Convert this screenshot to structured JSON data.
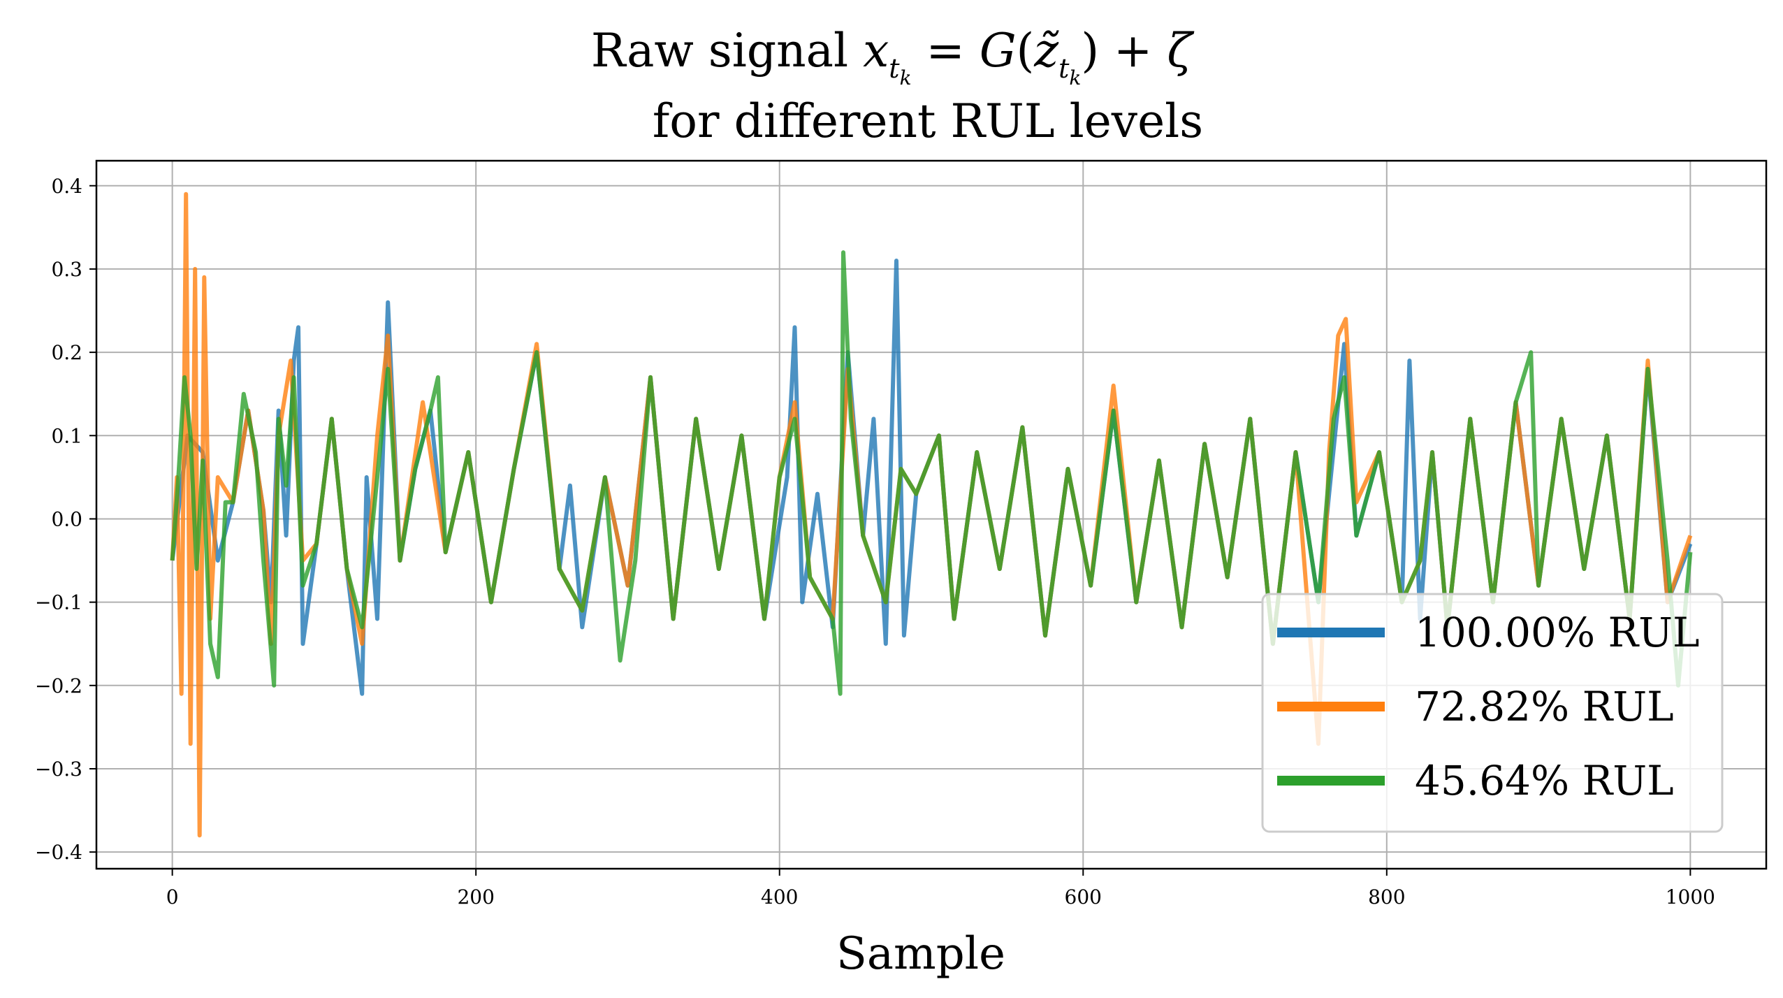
{
  "title_prefix": "Raw signal ",
  "title_line2": "for different RUL levels",
  "chart_data": {
    "type": "line",
    "title": "Raw signal x_{t_k} = G(z̃_{t_k}) + ζ for different RUL levels",
    "xlabel": "Sample",
    "ylabel": "",
    "xlim": [
      -50,
      1050
    ],
    "ylim": [
      -0.42,
      0.43
    ],
    "xticks": [
      0,
      200,
      400,
      600,
      800,
      1000
    ],
    "xtick_labels": [
      "0",
      "200",
      "400",
      "600",
      "800",
      "1000"
    ],
    "yticks": [
      -0.4,
      -0.3,
      -0.2,
      -0.1,
      0.0,
      0.1,
      0.2,
      0.3,
      0.4
    ],
    "ytick_labels": [
      "−0.4",
      "−0.3",
      "−0.2",
      "−0.1",
      "0.0",
      "0.1",
      "0.2",
      "0.3",
      "0.4"
    ],
    "grid": true,
    "legend_position": "lower-right",
    "series": [
      {
        "name": "100.00% RUL",
        "color": "#1f77b4",
        "points": [
          [
            0,
            -0.05
          ],
          [
            10,
            0.1
          ],
          [
            20,
            0.08
          ],
          [
            30,
            -0.05
          ],
          [
            40,
            0.02
          ],
          [
            50,
            0.13
          ],
          [
            60,
            0.01
          ],
          [
            65,
            -0.1
          ],
          [
            70,
            0.13
          ],
          [
            75,
            -0.02
          ],
          [
            80,
            0.19
          ],
          [
            83,
            0.23
          ],
          [
            86,
            -0.15
          ],
          [
            95,
            -0.03
          ],
          [
            105,
            0.12
          ],
          [
            115,
            -0.06
          ],
          [
            125,
            -0.21
          ],
          [
            128,
            0.05
          ],
          [
            135,
            -0.12
          ],
          [
            142,
            0.26
          ],
          [
            150,
            -0.05
          ],
          [
            160,
            0.06
          ],
          [
            170,
            0.13
          ],
          [
            180,
            -0.04
          ],
          [
            195,
            0.08
          ],
          [
            210,
            -0.1
          ],
          [
            225,
            0.06
          ],
          [
            240,
            0.2
          ],
          [
            255,
            -0.06
          ],
          [
            262,
            0.04
          ],
          [
            270,
            -0.13
          ],
          [
            285,
            0.05
          ],
          [
            300,
            -0.08
          ],
          [
            315,
            0.17
          ],
          [
            330,
            -0.12
          ],
          [
            345,
            0.12
          ],
          [
            360,
            -0.06
          ],
          [
            375,
            0.1
          ],
          [
            390,
            -0.12
          ],
          [
            405,
            0.05
          ],
          [
            410,
            0.23
          ],
          [
            415,
            -0.1
          ],
          [
            425,
            0.03
          ],
          [
            435,
            -0.13
          ],
          [
            445,
            0.2
          ],
          [
            455,
            -0.02
          ],
          [
            462,
            0.12
          ],
          [
            470,
            -0.15
          ],
          [
            477,
            0.31
          ],
          [
            482,
            -0.14
          ],
          [
            490,
            0.03
          ],
          [
            505,
            0.1
          ],
          [
            515,
            -0.12
          ],
          [
            530,
            0.08
          ],
          [
            545,
            -0.06
          ],
          [
            560,
            0.11
          ],
          [
            575,
            -0.14
          ],
          [
            590,
            0.06
          ],
          [
            605,
            -0.08
          ],
          [
            620,
            0.13
          ],
          [
            635,
            -0.1
          ],
          [
            650,
            0.07
          ],
          [
            665,
            -0.13
          ],
          [
            680,
            0.09
          ],
          [
            695,
            -0.07
          ],
          [
            710,
            0.12
          ],
          [
            725,
            -0.15
          ],
          [
            740,
            0.08
          ],
          [
            755,
            -0.1
          ],
          [
            762,
            0.03
          ],
          [
            772,
            0.21
          ],
          [
            780,
            -0.02
          ],
          [
            795,
            0.08
          ],
          [
            810,
            -0.1
          ],
          [
            815,
            0.19
          ],
          [
            822,
            -0.12
          ],
          [
            830,
            0.08
          ],
          [
            840,
            -0.13
          ],
          [
            855,
            0.12
          ],
          [
            870,
            -0.1
          ],
          [
            885,
            0.14
          ],
          [
            900,
            -0.08
          ],
          [
            915,
            0.12
          ],
          [
            930,
            -0.06
          ],
          [
            945,
            0.1
          ],
          [
            960,
            -0.12
          ],
          [
            972,
            0.18
          ],
          [
            985,
            -0.1
          ],
          [
            1000,
            -0.03
          ]
        ]
      },
      {
        "name": "72.82% RUL",
        "color": "#ff7f0e",
        "points": [
          [
            0,
            -0.05
          ],
          [
            3,
            0.05
          ],
          [
            6,
            -0.21
          ],
          [
            9,
            0.39
          ],
          [
            12,
            -0.27
          ],
          [
            15,
            0.3
          ],
          [
            18,
            -0.38
          ],
          [
            21,
            0.29
          ],
          [
            25,
            -0.12
          ],
          [
            30,
            0.05
          ],
          [
            40,
            0.02
          ],
          [
            50,
            0.13
          ],
          [
            60,
            0.01
          ],
          [
            65,
            -0.15
          ],
          [
            70,
            0.1
          ],
          [
            78,
            0.19
          ],
          [
            86,
            -0.05
          ],
          [
            95,
            -0.03
          ],
          [
            105,
            0.12
          ],
          [
            115,
            -0.06
          ],
          [
            125,
            -0.15
          ],
          [
            135,
            0.1
          ],
          [
            142,
            0.22
          ],
          [
            150,
            -0.05
          ],
          [
            165,
            0.14
          ],
          [
            180,
            -0.04
          ],
          [
            195,
            0.08
          ],
          [
            210,
            -0.1
          ],
          [
            225,
            0.06
          ],
          [
            240,
            0.21
          ],
          [
            255,
            -0.06
          ],
          [
            270,
            -0.11
          ],
          [
            285,
            0.05
          ],
          [
            300,
            -0.08
          ],
          [
            315,
            0.17
          ],
          [
            330,
            -0.12
          ],
          [
            345,
            0.12
          ],
          [
            360,
            -0.06
          ],
          [
            375,
            0.1
          ],
          [
            390,
            -0.12
          ],
          [
            400,
            0.05
          ],
          [
            410,
            0.14
          ],
          [
            420,
            -0.07
          ],
          [
            435,
            -0.12
          ],
          [
            445,
            0.18
          ],
          [
            455,
            -0.02
          ],
          [
            470,
            -0.1
          ],
          [
            480,
            0.06
          ],
          [
            490,
            0.03
          ],
          [
            505,
            0.1
          ],
          [
            515,
            -0.12
          ],
          [
            530,
            0.08
          ],
          [
            545,
            -0.06
          ],
          [
            560,
            0.11
          ],
          [
            575,
            -0.14
          ],
          [
            590,
            0.06
          ],
          [
            605,
            -0.08
          ],
          [
            620,
            0.16
          ],
          [
            635,
            -0.1
          ],
          [
            650,
            0.07
          ],
          [
            665,
            -0.13
          ],
          [
            680,
            0.09
          ],
          [
            695,
            -0.07
          ],
          [
            710,
            0.12
          ],
          [
            725,
            -0.15
          ],
          [
            740,
            0.08
          ],
          [
            755,
            -0.27
          ],
          [
            762,
            0.08
          ],
          [
            768,
            0.22
          ],
          [
            773,
            0.24
          ],
          [
            780,
            0.02
          ],
          [
            795,
            0.08
          ],
          [
            810,
            -0.1
          ],
          [
            822,
            -0.05
          ],
          [
            830,
            0.08
          ],
          [
            840,
            -0.13
          ],
          [
            855,
            0.12
          ],
          [
            870,
            -0.1
          ],
          [
            885,
            0.14
          ],
          [
            900,
            -0.08
          ],
          [
            915,
            0.12
          ],
          [
            930,
            -0.06
          ],
          [
            945,
            0.1
          ],
          [
            960,
            -0.12
          ],
          [
            972,
            0.19
          ],
          [
            985,
            -0.1
          ],
          [
            1000,
            -0.02
          ]
        ]
      },
      {
        "name": "45.64% RUL",
        "color": "#2ca02c",
        "points": [
          [
            0,
            -0.05
          ],
          [
            4,
            0.05
          ],
          [
            8,
            0.17
          ],
          [
            12,
            0.1
          ],
          [
            16,
            -0.06
          ],
          [
            20,
            0.07
          ],
          [
            25,
            -0.15
          ],
          [
            30,
            -0.19
          ],
          [
            35,
            0.02
          ],
          [
            40,
            0.02
          ],
          [
            47,
            0.15
          ],
          [
            55,
            0.08
          ],
          [
            60,
            -0.05
          ],
          [
            67,
            -0.2
          ],
          [
            70,
            0.12
          ],
          [
            75,
            0.04
          ],
          [
            80,
            0.17
          ],
          [
            86,
            -0.08
          ],
          [
            95,
            -0.03
          ],
          [
            105,
            0.12
          ],
          [
            115,
            -0.06
          ],
          [
            125,
            -0.13
          ],
          [
            135,
            0.05
          ],
          [
            142,
            0.18
          ],
          [
            150,
            -0.05
          ],
          [
            160,
            0.06
          ],
          [
            170,
            0.13
          ],
          [
            175,
            0.17
          ],
          [
            180,
            -0.04
          ],
          [
            195,
            0.08
          ],
          [
            210,
            -0.1
          ],
          [
            225,
            0.06
          ],
          [
            240,
            0.2
          ],
          [
            255,
            -0.06
          ],
          [
            270,
            -0.11
          ],
          [
            285,
            0.05
          ],
          [
            295,
            -0.17
          ],
          [
            305,
            -0.05
          ],
          [
            315,
            0.17
          ],
          [
            330,
            -0.12
          ],
          [
            345,
            0.12
          ],
          [
            360,
            -0.06
          ],
          [
            375,
            0.1
          ],
          [
            390,
            -0.12
          ],
          [
            400,
            0.05
          ],
          [
            410,
            0.12
          ],
          [
            420,
            -0.07
          ],
          [
            435,
            -0.12
          ],
          [
            440,
            -0.21
          ],
          [
            442,
            0.32
          ],
          [
            447,
            0.12
          ],
          [
            455,
            -0.02
          ],
          [
            470,
            -0.1
          ],
          [
            480,
            0.06
          ],
          [
            490,
            0.03
          ],
          [
            505,
            0.1
          ],
          [
            515,
            -0.12
          ],
          [
            530,
            0.08
          ],
          [
            545,
            -0.06
          ],
          [
            560,
            0.11
          ],
          [
            575,
            -0.14
          ],
          [
            590,
            0.06
          ],
          [
            605,
            -0.08
          ],
          [
            620,
            0.13
          ],
          [
            635,
            -0.1
          ],
          [
            650,
            0.07
          ],
          [
            665,
            -0.13
          ],
          [
            680,
            0.09
          ],
          [
            695,
            -0.07
          ],
          [
            710,
            0.12
          ],
          [
            725,
            -0.15
          ],
          [
            740,
            0.08
          ],
          [
            755,
            -0.1
          ],
          [
            765,
            0.12
          ],
          [
            772,
            0.17
          ],
          [
            780,
            -0.02
          ],
          [
            795,
            0.08
          ],
          [
            810,
            -0.1
          ],
          [
            822,
            -0.05
          ],
          [
            830,
            0.08
          ],
          [
            840,
            -0.13
          ],
          [
            855,
            0.12
          ],
          [
            870,
            -0.1
          ],
          [
            885,
            0.14
          ],
          [
            895,
            0.2
          ],
          [
            900,
            -0.08
          ],
          [
            915,
            0.12
          ],
          [
            930,
            -0.06
          ],
          [
            945,
            0.1
          ],
          [
            960,
            -0.12
          ],
          [
            972,
            0.18
          ],
          [
            985,
            -0.05
          ],
          [
            992,
            -0.2
          ],
          [
            1000,
            -0.04
          ]
        ]
      }
    ]
  }
}
